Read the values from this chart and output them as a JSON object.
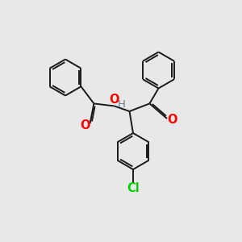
{
  "bg_color": "#e8e8e8",
  "bond_color": "#1a1a1a",
  "bond_width": 1.4,
  "O_color": "#ff0000",
  "Cl_color": "#00cc00",
  "H_color": "#708090",
  "fig_size": [
    3.0,
    3.0
  ],
  "dpi": 100,
  "xlim": [
    0,
    10
  ],
  "ylim": [
    0,
    10
  ]
}
